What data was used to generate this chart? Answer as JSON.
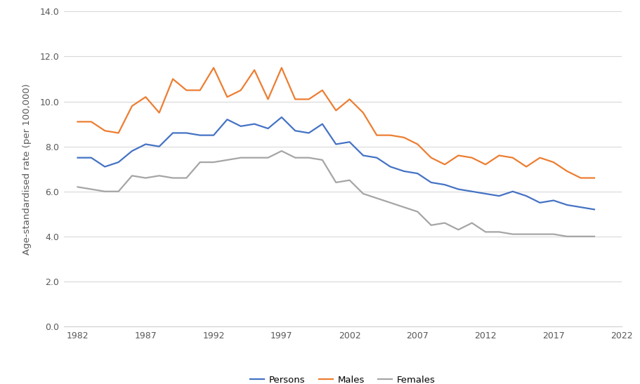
{
  "years": [
    1982,
    1983,
    1984,
    1985,
    1986,
    1987,
    1988,
    1989,
    1990,
    1991,
    1992,
    1993,
    1994,
    1995,
    1996,
    1997,
    1998,
    1999,
    2000,
    2001,
    2002,
    2003,
    2004,
    2005,
    2006,
    2007,
    2008,
    2009,
    2010,
    2011,
    2012,
    2013,
    2014,
    2015,
    2016,
    2017,
    2018,
    2019,
    2020
  ],
  "persons": [
    7.5,
    7.5,
    7.1,
    7.3,
    7.8,
    8.1,
    8.0,
    8.6,
    8.6,
    8.5,
    8.5,
    9.2,
    8.9,
    9.0,
    8.8,
    9.3,
    8.7,
    8.6,
    9.0,
    8.1,
    8.2,
    7.6,
    7.5,
    7.1,
    6.9,
    6.8,
    6.4,
    6.3,
    6.1,
    6.0,
    5.9,
    5.8,
    6.0,
    5.8,
    5.5,
    5.6,
    5.4,
    5.3,
    5.2
  ],
  "males": [
    9.1,
    9.1,
    8.7,
    8.6,
    9.8,
    10.2,
    9.5,
    11.0,
    10.5,
    10.5,
    11.5,
    10.2,
    10.5,
    11.4,
    10.1,
    11.5,
    10.1,
    10.1,
    10.5,
    9.6,
    10.1,
    9.5,
    8.5,
    8.5,
    8.4,
    8.1,
    7.5,
    7.2,
    7.6,
    7.5,
    7.2,
    7.6,
    7.5,
    7.1,
    7.5,
    7.3,
    6.9,
    6.6,
    6.6
  ],
  "females": [
    6.2,
    6.1,
    6.0,
    6.0,
    6.7,
    6.6,
    6.7,
    6.6,
    6.6,
    7.3,
    7.3,
    7.4,
    7.5,
    7.5,
    7.5,
    7.8,
    7.5,
    7.5,
    7.4,
    6.4,
    6.5,
    5.9,
    5.7,
    5.5,
    5.3,
    5.1,
    4.5,
    4.6,
    4.3,
    4.6,
    4.2,
    4.2,
    4.1,
    4.1,
    4.1,
    4.1,
    4.0,
    4.0,
    4.0
  ],
  "persons_color": "#4472C4",
  "males_color": "#ED7D31",
  "females_color": "#A5A5A5",
  "ylabel": "Age-standardised rate (per 100,000)",
  "ylim": [
    0.0,
    14.0
  ],
  "yticks": [
    0.0,
    2.0,
    4.0,
    6.0,
    8.0,
    10.0,
    12.0,
    14.0
  ],
  "xlim": [
    1981,
    2022
  ],
  "xticks": [
    1982,
    1987,
    1992,
    1997,
    2002,
    2007,
    2012,
    2017,
    2022
  ],
  "legend_labels": [
    "Persons",
    "Males",
    "Females"
  ],
  "grid_color": "#D9D9D9",
  "background_color": "#FFFFFF",
  "line_width": 1.6
}
